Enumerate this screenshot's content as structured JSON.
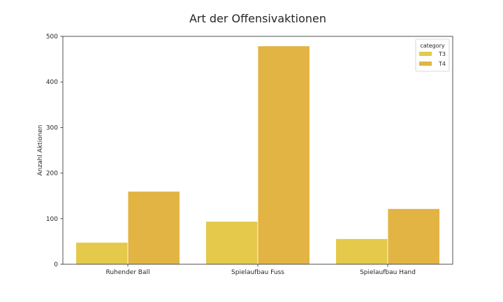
{
  "chart_data": {
    "type": "bar",
    "title": "Art der Offensivaktionen",
    "xlabel": "",
    "ylabel": "Anzahl Aktionen",
    "categories": [
      "Ruhender Ball",
      "Spielaufbau Fuss",
      "Spielaufbau Hand"
    ],
    "series": [
      {
        "name": "T3",
        "values": [
          48,
          94,
          56
        ],
        "color": "#e4c94a"
      },
      {
        "name": "T4",
        "values": [
          160,
          479,
          122
        ],
        "color": "#e2b444"
      }
    ],
    "ylim": [
      0,
      500
    ],
    "yticks": [
      0,
      100,
      200,
      300,
      400,
      500
    ],
    "grid": false,
    "legend": {
      "title": "category",
      "position": "top-right"
    }
  }
}
